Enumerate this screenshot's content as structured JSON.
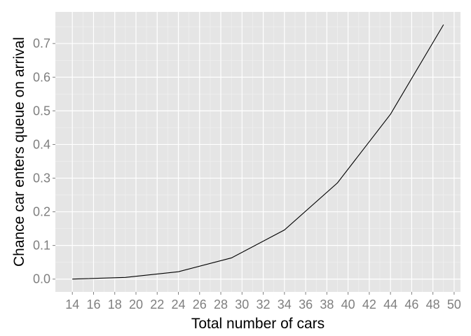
{
  "chart_data": {
    "type": "line",
    "title": "",
    "xlabel": "Total number of cars",
    "ylabel": "Chance car enters queue on arrival",
    "x": [
      14,
      19,
      24,
      29,
      34,
      39,
      44,
      49
    ],
    "series": [
      {
        "values": [
          0.0,
          0.005,
          0.022,
          0.063,
          0.146,
          0.286,
          0.49,
          0.756
        ]
      }
    ],
    "xlim": [
      12.4,
      50.6
    ],
    "ylim": [
      -0.038,
      0.794
    ],
    "x_ticks": [
      14,
      16,
      18,
      20,
      22,
      24,
      26,
      28,
      30,
      32,
      34,
      36,
      38,
      40,
      42,
      44,
      46,
      48,
      50
    ],
    "y_ticks": [
      0.0,
      0.1,
      0.2,
      0.3,
      0.4,
      0.5,
      0.6,
      0.7
    ],
    "y_tick_labels": [
      "0.0",
      "0.1",
      "0.2",
      "0.3",
      "0.4",
      "0.5",
      "0.6",
      "0.7"
    ],
    "grid": true,
    "colors": {
      "panel": "#e5e5e5",
      "grid_major": "#ffffff",
      "grid_minor": "#f2f2f2",
      "line": "#000000"
    }
  }
}
